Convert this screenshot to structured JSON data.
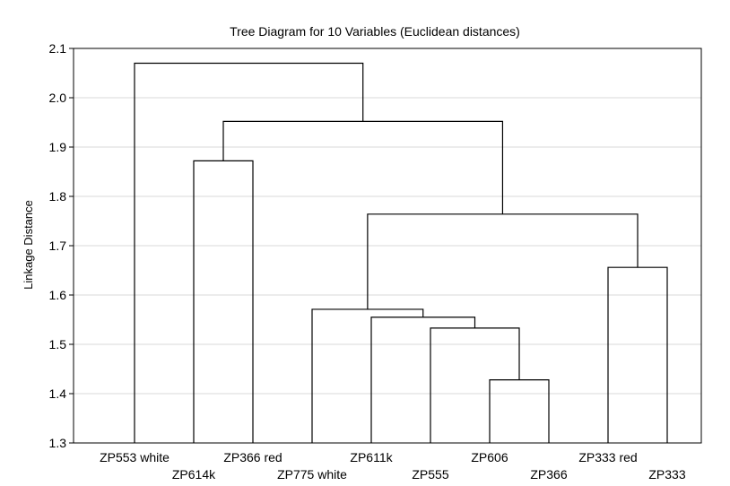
{
  "chart_data": {
    "type": "dendrogram",
    "title": "Tree Diagram for 10 Variables (Euclidean distances)",
    "ylabel": "Linkage Distance",
    "xlabel": "",
    "ylim": [
      1.3,
      2.1
    ],
    "yticks": [
      "1.3",
      "1.4",
      "1.5",
      "1.6",
      "1.7",
      "1.8",
      "1.9",
      "2.0",
      "2.1"
    ],
    "grid": true,
    "leaves": [
      "ZP553 white",
      "ZP614k",
      "ZP366 red",
      "ZP775 white",
      "ZP611k",
      "ZP555",
      "ZP606",
      "ZP366",
      "ZP333 red",
      "ZP333"
    ],
    "merges": [
      {
        "left": "ZP606",
        "right": "ZP366",
        "distance": 1.428
      },
      {
        "left": "ZP555",
        "right": "ZP606+ZP366",
        "distance": 1.533
      },
      {
        "left": "ZP611k",
        "right": "ZP555+ZP606+ZP366",
        "distance": 1.555
      },
      {
        "left": "ZP775 white",
        "right": "ZP611k+ZP555+ZP606+ZP366",
        "distance": 1.571
      },
      {
        "left": "ZP333 red",
        "right": "ZP333",
        "distance": 1.656
      },
      {
        "left": "cluster(ZP775 white..ZP366)",
        "right": "ZP333 red+ZP333",
        "distance": 1.764
      },
      {
        "left": "ZP614k",
        "right": "ZP366 red",
        "distance": 1.872
      },
      {
        "left": "ZP614k+ZP366 red",
        "right": "cluster(ZP775 white..ZP333)",
        "distance": 1.952
      },
      {
        "left": "ZP553 white",
        "right": "all others",
        "distance": 2.07
      }
    ]
  }
}
